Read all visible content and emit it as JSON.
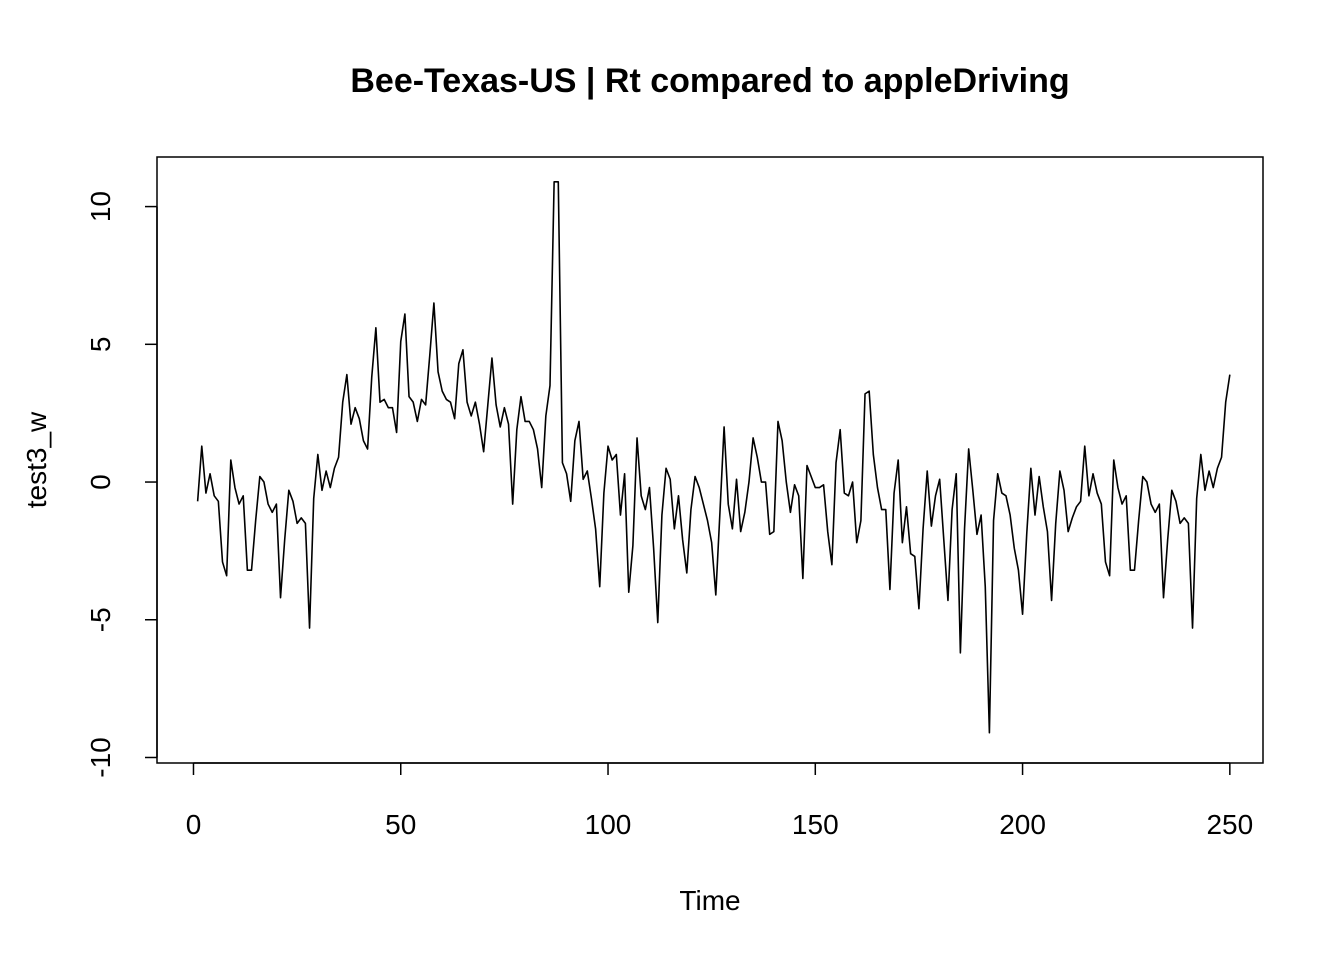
{
  "chart_data": {
    "type": "line",
    "title": "Bee-Texas-US | Rt compared to appleDriving",
    "xlabel": "Time",
    "ylabel": "test3_w",
    "xlim": [
      -8.8,
      258
    ],
    "ylim": [
      -10.2,
      11.8
    ],
    "x_ticks": [
      0,
      50,
      100,
      150,
      200,
      250
    ],
    "y_ticks": [
      -10,
      -5,
      0,
      5,
      10
    ],
    "grid": false,
    "series": [
      {
        "x_start": 1,
        "values": [
          -0.7,
          1.3,
          -0.4,
          0.3,
          -0.5,
          -0.7,
          -2.9,
          -3.4,
          0.8,
          -0.2,
          -0.8,
          -0.5,
          -3.2,
          -3.2,
          -1.4,
          0.2,
          0.0,
          -0.8,
          -1.1,
          -0.8,
          -4.2,
          -2.1,
          -0.3,
          -0.7,
          -1.5,
          -1.3,
          -1.5,
          -5.3,
          -0.6,
          1.0,
          -0.3,
          0.4,
          -0.2,
          0.5,
          0.9,
          2.9,
          3.9,
          2.1,
          2.7,
          2.3,
          1.5,
          1.2,
          3.8,
          5.6,
          2.9,
          3.0,
          2.7,
          2.7,
          1.8,
          5.1,
          6.1,
          3.1,
          2.9,
          2.2,
          3.0,
          2.8,
          4.6,
          6.5,
          4.0,
          3.3,
          3.0,
          2.9,
          2.3,
          4.3,
          4.8,
          2.9,
          2.4,
          2.9,
          2.1,
          1.1,
          2.8,
          4.5,
          2.8,
          2.0,
          2.7,
          2.1,
          -0.8,
          1.9,
          3.1,
          2.2,
          2.2,
          1.9,
          1.2,
          -0.2,
          2.4,
          3.5,
          10.9,
          10.9,
          0.7,
          0.3,
          -0.7,
          1.5,
          2.2,
          0.1,
          0.4,
          -0.6,
          -1.7,
          -3.8,
          -0.4,
          1.3,
          0.8,
          1.0,
          -1.2,
          0.3,
          -4.0,
          -2.3,
          1.6,
          -0.5,
          -1.0,
          -0.2,
          -2.4,
          -5.1,
          -1.2,
          0.5,
          0.1,
          -1.7,
          -0.5,
          -2.1,
          -3.3,
          -1.0,
          0.2,
          -0.2,
          -0.8,
          -1.4,
          -2.2,
          -4.1,
          -1.1,
          2.0,
          -0.8,
          -1.7,
          0.1,
          -1.8,
          -1.1,
          0.0,
          1.6,
          0.9,
          0.0,
          0.0,
          -1.9,
          -1.8,
          2.2,
          1.5,
          0.0,
          -1.1,
          -0.1,
          -0.5,
          -3.5,
          0.6,
          0.2,
          -0.2,
          -0.2,
          -0.1,
          -1.8,
          -3.0,
          0.7,
          1.9,
          -0.4,
          -0.5,
          0.0,
          -2.2,
          -1.4,
          3.2,
          3.3,
          1.0,
          -0.2,
          -1.0,
          -1.0,
          -3.9,
          -0.4,
          0.8,
          -2.2,
          -0.9,
          -2.6,
          -2.7,
          -4.6,
          -1.7,
          0.4,
          -1.6,
          -0.5,
          0.1,
          -2.1,
          -4.3,
          -1.0,
          0.3,
          -6.2,
          -1.7,
          1.2,
          -0.3,
          -1.9,
          -1.2,
          -3.8,
          -9.1,
          -1.4,
          0.3,
          -0.4,
          -0.5,
          -1.2,
          -2.4,
          -3.2,
          -4.8,
          -1.9,
          0.5,
          -1.2,
          0.2,
          -0.9,
          -1.8,
          -4.3,
          -1.5,
          0.4,
          -0.3,
          -1.8,
          -1.3,
          -0.9,
          -0.7,
          1.3,
          -0.5,
          0.3,
          -0.4,
          -0.8,
          -2.9,
          -3.4,
          0.8,
          -0.2,
          -0.8,
          -0.5,
          -3.2,
          -3.2,
          -1.4,
          0.2,
          0.0,
          -0.8,
          -1.1,
          -0.8,
          -4.2,
          -2.1,
          -0.3,
          -0.7,
          -1.5,
          -1.3,
          -1.5,
          -5.3,
          -0.6,
          1.0,
          -0.3,
          0.4,
          -0.2,
          0.5,
          0.9,
          2.9,
          3.9
        ]
      }
    ]
  }
}
